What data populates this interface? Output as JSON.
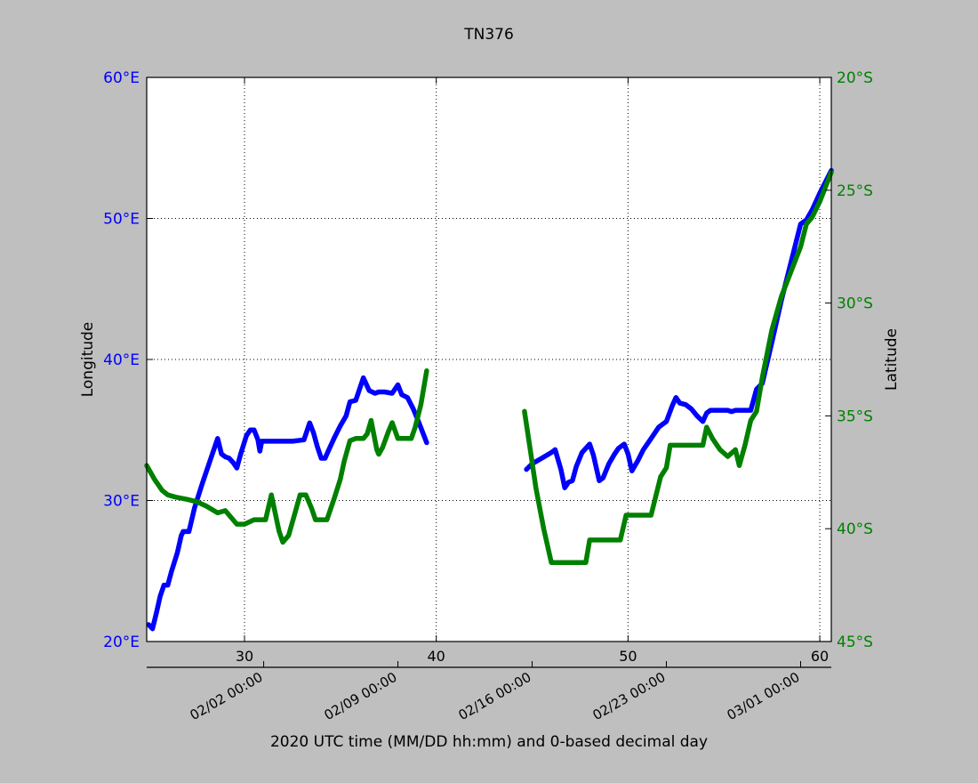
{
  "chart_data": {
    "type": "line",
    "title": "TN376",
    "xlabel": "2020 UTC time (MM/DD hh:mm) and 0-based decimal day",
    "ylabel_left": "Longitude",
    "ylabel_right": "Latitude",
    "xlim": [
      24.9,
      60.6
    ],
    "ylim_left": [
      20,
      60
    ],
    "ylim_right": [
      -45,
      -20
    ],
    "grid": true,
    "x_ticks": [
      30,
      40,
      50,
      60
    ],
    "x_tick_labels": [
      "30",
      "40",
      "50",
      "60"
    ],
    "y_left_ticks": [
      20,
      30,
      40,
      50,
      60
    ],
    "y_left_tick_labels": [
      "20°E",
      "30°E",
      "40°E",
      "50°E",
      "60°E"
    ],
    "y_right_ticks": [
      -45,
      -40,
      -35,
      -30,
      -25,
      -20
    ],
    "y_right_tick_labels": [
      "45°S",
      "40°S",
      "35°S",
      "30°S",
      "25°S",
      "20°S"
    ],
    "date_ticks": [
      31.0,
      38.0,
      45.0,
      52.0,
      59.0
    ],
    "date_tick_labels": [
      "02/02 00:00",
      "02/09 00:00",
      "02/16 00:00",
      "02/23 00:00",
      "03/01 00:00"
    ],
    "colors": {
      "longitude": "#0000ff",
      "latitude": "#008000",
      "axes": "#000000",
      "background": "#bfbfbf",
      "plot_bg": "#ffffff"
    },
    "series": [
      {
        "axis": "left",
        "color": "#0000ff",
        "segments": [
          [
            [
              25.0,
              21.2
            ],
            [
              25.2,
              20.9
            ],
            [
              25.4,
              22.0
            ],
            [
              25.6,
              23.2
            ],
            [
              25.8,
              24.0
            ],
            [
              26.0,
              24.0
            ],
            [
              26.2,
              25.0
            ],
            [
              26.5,
              26.3
            ],
            [
              26.7,
              27.5
            ],
            [
              26.8,
              27.8
            ],
            [
              27.1,
              27.8
            ],
            [
              27.4,
              29.5
            ],
            [
              27.8,
              31.2
            ],
            [
              28.3,
              33.2
            ],
            [
              28.6,
              34.4
            ],
            [
              28.8,
              33.3
            ],
            [
              29.0,
              33.1
            ],
            [
              29.2,
              33.0
            ],
            [
              29.4,
              32.7
            ],
            [
              29.6,
              32.3
            ],
            [
              29.8,
              33.3
            ],
            [
              30.1,
              34.6
            ],
            [
              30.3,
              35.0
            ],
            [
              30.5,
              35.0
            ],
            [
              30.7,
              34.3
            ],
            [
              30.8,
              33.5
            ],
            [
              30.9,
              34.2
            ],
            [
              31.5,
              34.2
            ],
            [
              32.5,
              34.2
            ],
            [
              33.1,
              34.3
            ],
            [
              33.4,
              35.5
            ],
            [
              33.6,
              34.8
            ],
            [
              33.8,
              33.8
            ],
            [
              34.0,
              33.0
            ],
            [
              34.2,
              33.0
            ],
            [
              34.4,
              33.6
            ],
            [
              34.7,
              34.5
            ],
            [
              35.0,
              35.3
            ],
            [
              35.3,
              36.0
            ],
            [
              35.5,
              37.0
            ],
            [
              35.8,
              37.1
            ],
            [
              36.2,
              38.7
            ],
            [
              36.5,
              37.8
            ],
            [
              36.8,
              37.6
            ],
            [
              37.0,
              37.7
            ],
            [
              37.3,
              37.7
            ],
            [
              37.7,
              37.6
            ],
            [
              38.0,
              38.2
            ],
            [
              38.2,
              37.5
            ],
            [
              38.5,
              37.3
            ],
            [
              38.8,
              36.5
            ],
            [
              39.1,
              35.5
            ],
            [
              39.5,
              34.1
            ]
          ],
          [
            [
              44.7,
              32.2
            ],
            [
              45.0,
              32.6
            ],
            [
              45.5,
              33.0
            ],
            [
              46.0,
              33.4
            ],
            [
              46.2,
              33.6
            ],
            [
              46.5,
              32.2
            ],
            [
              46.7,
              30.9
            ],
            [
              46.9,
              31.3
            ],
            [
              47.1,
              31.4
            ],
            [
              47.3,
              32.4
            ],
            [
              47.6,
              33.4
            ],
            [
              47.8,
              33.7
            ],
            [
              48.0,
              34.0
            ],
            [
              48.2,
              33.2
            ],
            [
              48.5,
              31.4
            ],
            [
              48.7,
              31.6
            ],
            [
              49.0,
              32.6
            ],
            [
              49.3,
              33.3
            ],
            [
              49.5,
              33.7
            ],
            [
              49.8,
              34.0
            ],
            [
              50.0,
              33.3
            ],
            [
              50.2,
              32.1
            ],
            [
              50.5,
              32.8
            ],
            [
              50.8,
              33.6
            ],
            [
              51.2,
              34.4
            ],
            [
              51.6,
              35.2
            ],
            [
              52.0,
              35.6
            ],
            [
              52.3,
              36.7
            ],
            [
              52.5,
              37.3
            ],
            [
              52.7,
              36.9
            ],
            [
              53.0,
              36.8
            ],
            [
              53.3,
              36.5
            ],
            [
              53.6,
              36.0
            ],
            [
              53.9,
              35.6
            ],
            [
              54.1,
              36.2
            ],
            [
              54.3,
              36.4
            ],
            [
              54.8,
              36.4
            ],
            [
              55.2,
              36.4
            ],
            [
              55.4,
              36.3
            ],
            [
              55.6,
              36.4
            ],
            [
              56.0,
              36.4
            ],
            [
              56.4,
              36.4
            ],
            [
              56.7,
              37.9
            ],
            [
              57.0,
              38.3
            ],
            [
              57.5,
              41.2
            ],
            [
              58.0,
              44.2
            ],
            [
              58.5,
              46.9
            ],
            [
              59.0,
              49.6
            ],
            [
              59.3,
              49.9
            ],
            [
              59.6,
              50.6
            ],
            [
              60.0,
              51.8
            ],
            [
              60.6,
              53.4
            ]
          ]
        ]
      },
      {
        "axis": "right",
        "color": "#008000",
        "segments": [
          [
            [
              24.9,
              -37.2
            ],
            [
              25.3,
              -37.8
            ],
            [
              25.7,
              -38.3
            ],
            [
              26.0,
              -38.5
            ],
            [
              26.4,
              -38.6
            ],
            [
              27.0,
              -38.7
            ],
            [
              27.5,
              -38.8
            ],
            [
              28.0,
              -39.0
            ],
            [
              28.6,
              -39.3
            ],
            [
              29.0,
              -39.2
            ],
            [
              29.3,
              -39.5
            ],
            [
              29.6,
              -39.8
            ],
            [
              30.0,
              -39.8
            ],
            [
              30.5,
              -39.6
            ],
            [
              30.8,
              -39.6
            ],
            [
              31.1,
              -39.6
            ],
            [
              31.4,
              -38.5
            ],
            [
              31.8,
              -40.1
            ],
            [
              32.0,
              -40.6
            ],
            [
              32.3,
              -40.3
            ],
            [
              32.6,
              -39.4
            ],
            [
              32.9,
              -38.5
            ],
            [
              33.2,
              -38.5
            ],
            [
              33.5,
              -39.1
            ],
            [
              33.7,
              -39.6
            ],
            [
              34.0,
              -39.6
            ],
            [
              34.3,
              -39.6
            ],
            [
              34.7,
              -38.6
            ],
            [
              35.0,
              -37.8
            ],
            [
              35.2,
              -37.0
            ],
            [
              35.5,
              -36.1
            ],
            [
              35.8,
              -36.0
            ],
            [
              36.2,
              -36.0
            ],
            [
              36.4,
              -35.8
            ],
            [
              36.6,
              -35.2
            ],
            [
              36.9,
              -36.5
            ],
            [
              37.0,
              -36.7
            ],
            [
              37.2,
              -36.4
            ],
            [
              37.5,
              -35.7
            ],
            [
              37.7,
              -35.3
            ],
            [
              38.0,
              -36.0
            ],
            [
              38.3,
              -36.0
            ],
            [
              38.7,
              -36.0
            ],
            [
              38.9,
              -35.5
            ],
            [
              39.2,
              -34.5
            ],
            [
              39.5,
              -33.0
            ]
          ],
          [
            [
              44.6,
              -34.8
            ],
            [
              44.9,
              -36.5
            ],
            [
              45.2,
              -38.2
            ],
            [
              45.6,
              -40.0
            ],
            [
              46.0,
              -41.5
            ],
            [
              46.5,
              -41.5
            ],
            [
              47.0,
              -41.5
            ],
            [
              47.5,
              -41.5
            ],
            [
              47.8,
              -41.5
            ],
            [
              48.0,
              -40.5
            ],
            [
              48.5,
              -40.5
            ],
            [
              49.0,
              -40.5
            ],
            [
              49.6,
              -40.5
            ],
            [
              49.9,
              -39.4
            ],
            [
              50.5,
              -39.4
            ],
            [
              51.2,
              -39.4
            ],
            [
              51.7,
              -37.7
            ],
            [
              52.0,
              -37.3
            ],
            [
              52.2,
              -36.3
            ],
            [
              52.5,
              -36.3
            ],
            [
              53.0,
              -36.3
            ],
            [
              53.5,
              -36.3
            ],
            [
              53.9,
              -36.3
            ],
            [
              54.1,
              -35.5
            ],
            [
              54.4,
              -36.0
            ],
            [
              54.8,
              -36.5
            ],
            [
              55.2,
              -36.8
            ],
            [
              55.6,
              -36.5
            ],
            [
              55.8,
              -37.2
            ],
            [
              56.1,
              -36.3
            ],
            [
              56.4,
              -35.2
            ],
            [
              56.7,
              -34.8
            ],
            [
              57.0,
              -33.3
            ],
            [
              57.5,
              -31.2
            ],
            [
              58.0,
              -29.7
            ],
            [
              58.5,
              -28.6
            ],
            [
              59.0,
              -27.5
            ],
            [
              59.3,
              -26.5
            ],
            [
              59.6,
              -26.2
            ],
            [
              60.0,
              -25.5
            ],
            [
              60.6,
              -24.2
            ]
          ]
        ]
      }
    ]
  }
}
